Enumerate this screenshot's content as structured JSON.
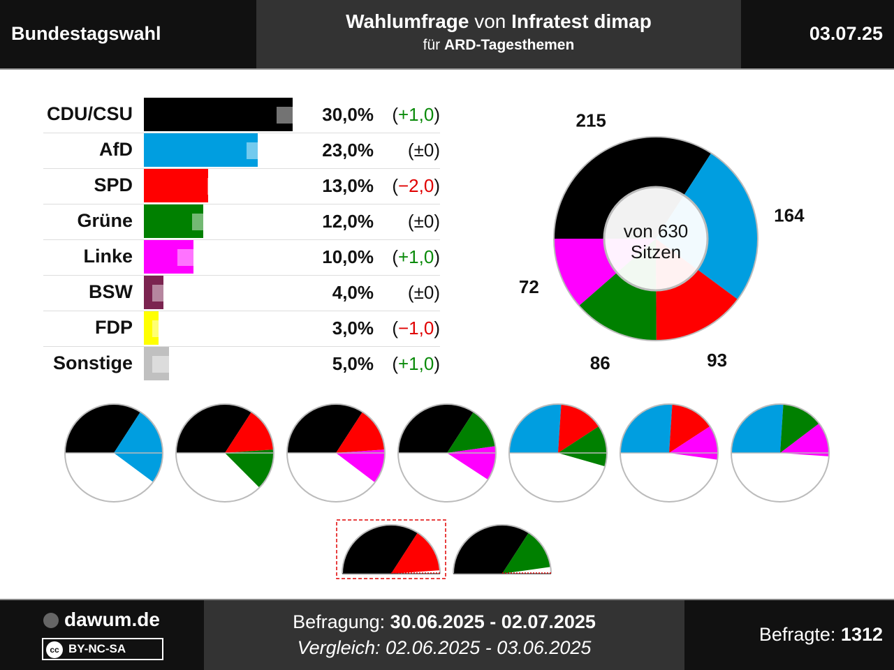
{
  "header": {
    "left": "Bundestagswahl",
    "title_bold1": "Wahlumfrage",
    "title_mid": " von ",
    "title_bold2": "Infratest dimap",
    "subtitle_pre": "für ",
    "subtitle_bold": "ARD-Tagesthemen",
    "date": "03.07.25"
  },
  "chart_data": [
    {
      "type": "bar",
      "categories": [
        "CDU/CSU",
        "AfD",
        "SPD",
        "Grüne",
        "Linke",
        "BSW",
        "FDP",
        "Sonstige"
      ],
      "values": [
        30.0,
        23.0,
        13.0,
        12.0,
        10.0,
        4.0,
        3.0,
        5.0
      ],
      "previous": [
        29.0,
        23.0,
        15.0,
        12.0,
        9.0,
        4.0,
        4.0,
        4.0
      ],
      "value_labels": [
        "30,0%",
        "23,0%",
        "13,0%",
        "12,0%",
        "10,0%",
        "4,0%",
        "3,0%",
        "5,0%"
      ],
      "change_labels": [
        "(+1,0)",
        "(±0)",
        "(−2,0)",
        "(±0)",
        "(+1,0)",
        "(±0)",
        "(−1,0)",
        "(+1,0)"
      ],
      "change_sign": [
        "pos",
        "neu",
        "neg",
        "neu",
        "pos",
        "neu",
        "neg",
        "pos"
      ],
      "colors": [
        "#000000",
        "#009ee0",
        "#ff0000",
        "#008000",
        "#ff00ff",
        "#7b2450",
        "#ffff00",
        "#c0c0c0"
      ]
    },
    {
      "type": "pie",
      "categories": [
        "CDU/CSU",
        "AfD",
        "SPD",
        "Grüne",
        "Linke"
      ],
      "values": [
        215,
        164,
        93,
        86,
        72
      ],
      "colors": [
        "#000000",
        "#009ee0",
        "#ff0000",
        "#008000",
        "#ff00ff"
      ],
      "center_line1": "von 630",
      "center_line2": "Sitzen"
    }
  ],
  "coalitions": [
    {
      "parties": [
        {
          "seats": 215,
          "color": "#000000"
        },
        {
          "seats": 164,
          "color": "#009ee0"
        }
      ]
    },
    {
      "parties": [
        {
          "seats": 215,
          "color": "#000000"
        },
        {
          "seats": 93,
          "color": "#ff0000"
        },
        {
          "seats": 86,
          "color": "#008000"
        }
      ]
    },
    {
      "parties": [
        {
          "seats": 215,
          "color": "#000000"
        },
        {
          "seats": 93,
          "color": "#ff0000"
        },
        {
          "seats": 72,
          "color": "#ff00ff"
        }
      ]
    },
    {
      "parties": [
        {
          "seats": 215,
          "color": "#000000"
        },
        {
          "seats": 86,
          "color": "#008000"
        },
        {
          "seats": 72,
          "color": "#ff00ff"
        }
      ]
    },
    {
      "parties": [
        {
          "seats": 164,
          "color": "#009ee0"
        },
        {
          "seats": 93,
          "color": "#ff0000"
        },
        {
          "seats": 86,
          "color": "#008000"
        }
      ]
    },
    {
      "parties": [
        {
          "seats": 164,
          "color": "#009ee0"
        },
        {
          "seats": 93,
          "color": "#ff0000"
        },
        {
          "seats": 72,
          "color": "#ff00ff"
        }
      ]
    },
    {
      "parties": [
        {
          "seats": 164,
          "color": "#009ee0"
        },
        {
          "seats": 86,
          "color": "#008000"
        },
        {
          "seats": 72,
          "color": "#ff00ff"
        }
      ]
    }
  ],
  "majority_coalitions": [
    {
      "parties": [
        {
          "seats": 215,
          "color": "#000000"
        },
        {
          "seats": 93,
          "color": "#ff0000"
        }
      ],
      "highlighted": true
    },
    {
      "parties": [
        {
          "seats": 215,
          "color": "#000000"
        },
        {
          "seats": 86,
          "color": "#008000"
        }
      ],
      "highlighted": false
    }
  ],
  "footer": {
    "brand": "dawum.de",
    "license_cc": "cc",
    "license": "BY-NC-SA",
    "befragung_label": "Befragung: ",
    "befragung_value": "30.06.2025 - 02.07.2025",
    "vergleich": "Vergleich: 02.06.2025 - 03.06.2025",
    "befragte_label": "Befragte: ",
    "befragte_value": "1312"
  }
}
